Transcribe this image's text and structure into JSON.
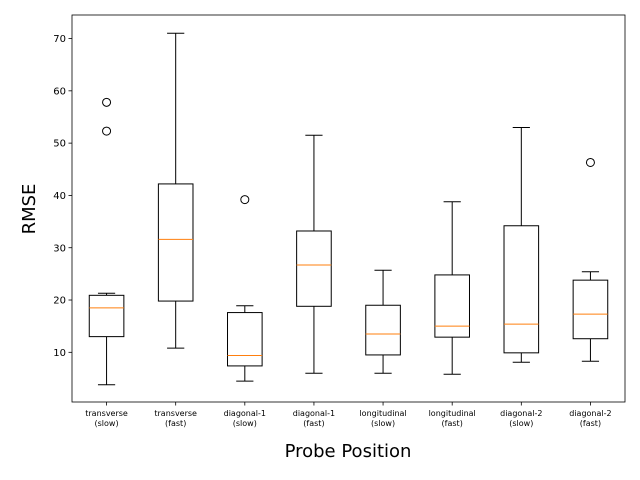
{
  "chart_data": {
    "type": "boxplot",
    "xlabel": "Probe Position",
    "ylabel": "RMSE",
    "ylim": [
      0.5,
      74.5
    ],
    "yticks": [
      10,
      20,
      30,
      40,
      50,
      60,
      70
    ],
    "grid": false,
    "colors": {
      "box": "#000000",
      "median": "#ff7f0e",
      "background": "#ffffff"
    },
    "categories": [
      {
        "lines": [
          "transverse",
          "(slow)"
        ],
        "whisker_low": 3.8,
        "q1": 13.0,
        "median": 18.5,
        "q3": 20.9,
        "whisker_high": 21.3,
        "outliers": [
          52.3,
          57.8
        ]
      },
      {
        "lines": [
          "transverse",
          "(fast)"
        ],
        "whisker_low": 10.8,
        "q1": 19.8,
        "median": 31.6,
        "q3": 42.2,
        "whisker_high": 71.0,
        "outliers": []
      },
      {
        "lines": [
          "diagonal-1",
          "(slow)"
        ],
        "whisker_low": 4.5,
        "q1": 7.4,
        "median": 9.4,
        "q3": 17.6,
        "whisker_high": 18.9,
        "outliers": [
          39.2
        ]
      },
      {
        "lines": [
          "diagonal-1",
          "(fast)"
        ],
        "whisker_low": 6.0,
        "q1": 18.8,
        "median": 26.7,
        "q3": 33.2,
        "whisker_high": 51.5,
        "outliers": []
      },
      {
        "lines": [
          "longitudinal",
          "(slow)"
        ],
        "whisker_low": 6.0,
        "q1": 9.5,
        "median": 13.5,
        "q3": 19.0,
        "whisker_high": 25.7,
        "outliers": []
      },
      {
        "lines": [
          "longitudinal",
          "(fast)"
        ],
        "whisker_low": 5.8,
        "q1": 12.9,
        "median": 15.0,
        "q3": 24.8,
        "whisker_high": 38.8,
        "outliers": []
      },
      {
        "lines": [
          "diagonal-2",
          "(slow)"
        ],
        "whisker_low": 8.1,
        "q1": 9.9,
        "median": 15.4,
        "q3": 34.2,
        "whisker_high": 53.0,
        "outliers": []
      },
      {
        "lines": [
          "diagonal-2",
          "(fast)"
        ],
        "whisker_low": 8.3,
        "q1": 12.6,
        "median": 17.3,
        "q3": 23.8,
        "whisker_high": 25.4,
        "outliers": [
          46.3
        ]
      }
    ]
  }
}
